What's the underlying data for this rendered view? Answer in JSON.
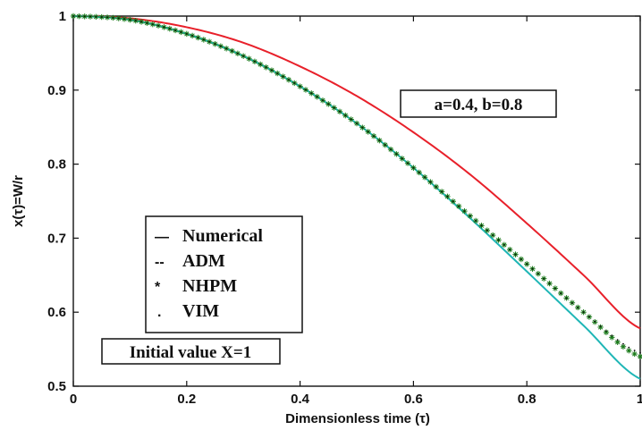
{
  "chart_data": {
    "type": "line",
    "title": "",
    "xlabel": "Dimensionless time (τ)",
    "ylabel": "x(τ)=W/r",
    "xlim": [
      0,
      1
    ],
    "ylim": [
      0.5,
      1
    ],
    "xticks": [
      0,
      0.2,
      0.4,
      0.6,
      0.8,
      1
    ],
    "xtick_labels": [
      "0",
      "0.2",
      "0.4",
      "0.6",
      "0.8",
      "1"
    ],
    "yticks": [
      0.5,
      0.6,
      0.7,
      0.8,
      0.9,
      1
    ],
    "ytick_labels": [
      "0.5",
      "0.6",
      "0.7",
      "0.8",
      "0.9",
      "1"
    ],
    "grid": false,
    "legend": {
      "placement": "center-left",
      "entries": [
        {
          "symbol": "—",
          "label": "Numerical"
        },
        {
          "symbol": "--",
          "label": "ADM"
        },
        {
          "symbol": "*",
          "label": "NHPM"
        },
        {
          "symbol": ".",
          "label": "VIM"
        }
      ]
    },
    "annotations": [
      "a=0.4, b=0.8",
      "Initial value X=1"
    ],
    "series": [
      {
        "color": "#e8202a",
        "x": [
          0,
          0.1,
          0.2,
          0.3,
          0.4,
          0.5,
          0.6,
          0.7,
          0.8,
          0.9,
          1.0
        ],
        "y": [
          1.0,
          0.997,
          0.985,
          0.964,
          0.932,
          0.892,
          0.843,
          0.786,
          0.72,
          0.65,
          0.578
        ]
      },
      {
        "color": "#1fb6b6",
        "x": [
          0,
          0.1,
          0.2,
          0.3,
          0.4,
          0.5,
          0.6,
          0.7,
          0.8,
          0.9,
          1.0
        ],
        "y": [
          1.0,
          0.995,
          0.976,
          0.946,
          0.905,
          0.855,
          0.795,
          0.727,
          0.655,
          0.582,
          0.51
        ]
      },
      {
        "color": "#1a7a1a",
        "marker": "*",
        "x": [
          0,
          0.1,
          0.2,
          0.3,
          0.4,
          0.5,
          0.6,
          0.7,
          0.8,
          0.9,
          1.0
        ],
        "y": [
          1.0,
          0.995,
          0.976,
          0.946,
          0.905,
          0.855,
          0.795,
          0.73,
          0.665,
          0.6,
          0.54
        ]
      },
      {
        "color": "#111111",
        "marker": ".",
        "x": [
          0,
          0.1,
          0.2,
          0.3,
          0.4,
          0.5,
          0.6,
          0.7,
          0.8,
          0.9,
          1.0
        ],
        "y": [
          1.0,
          0.995,
          0.976,
          0.946,
          0.905,
          0.855,
          0.795,
          0.73,
          0.665,
          0.6,
          0.545
        ]
      }
    ]
  }
}
